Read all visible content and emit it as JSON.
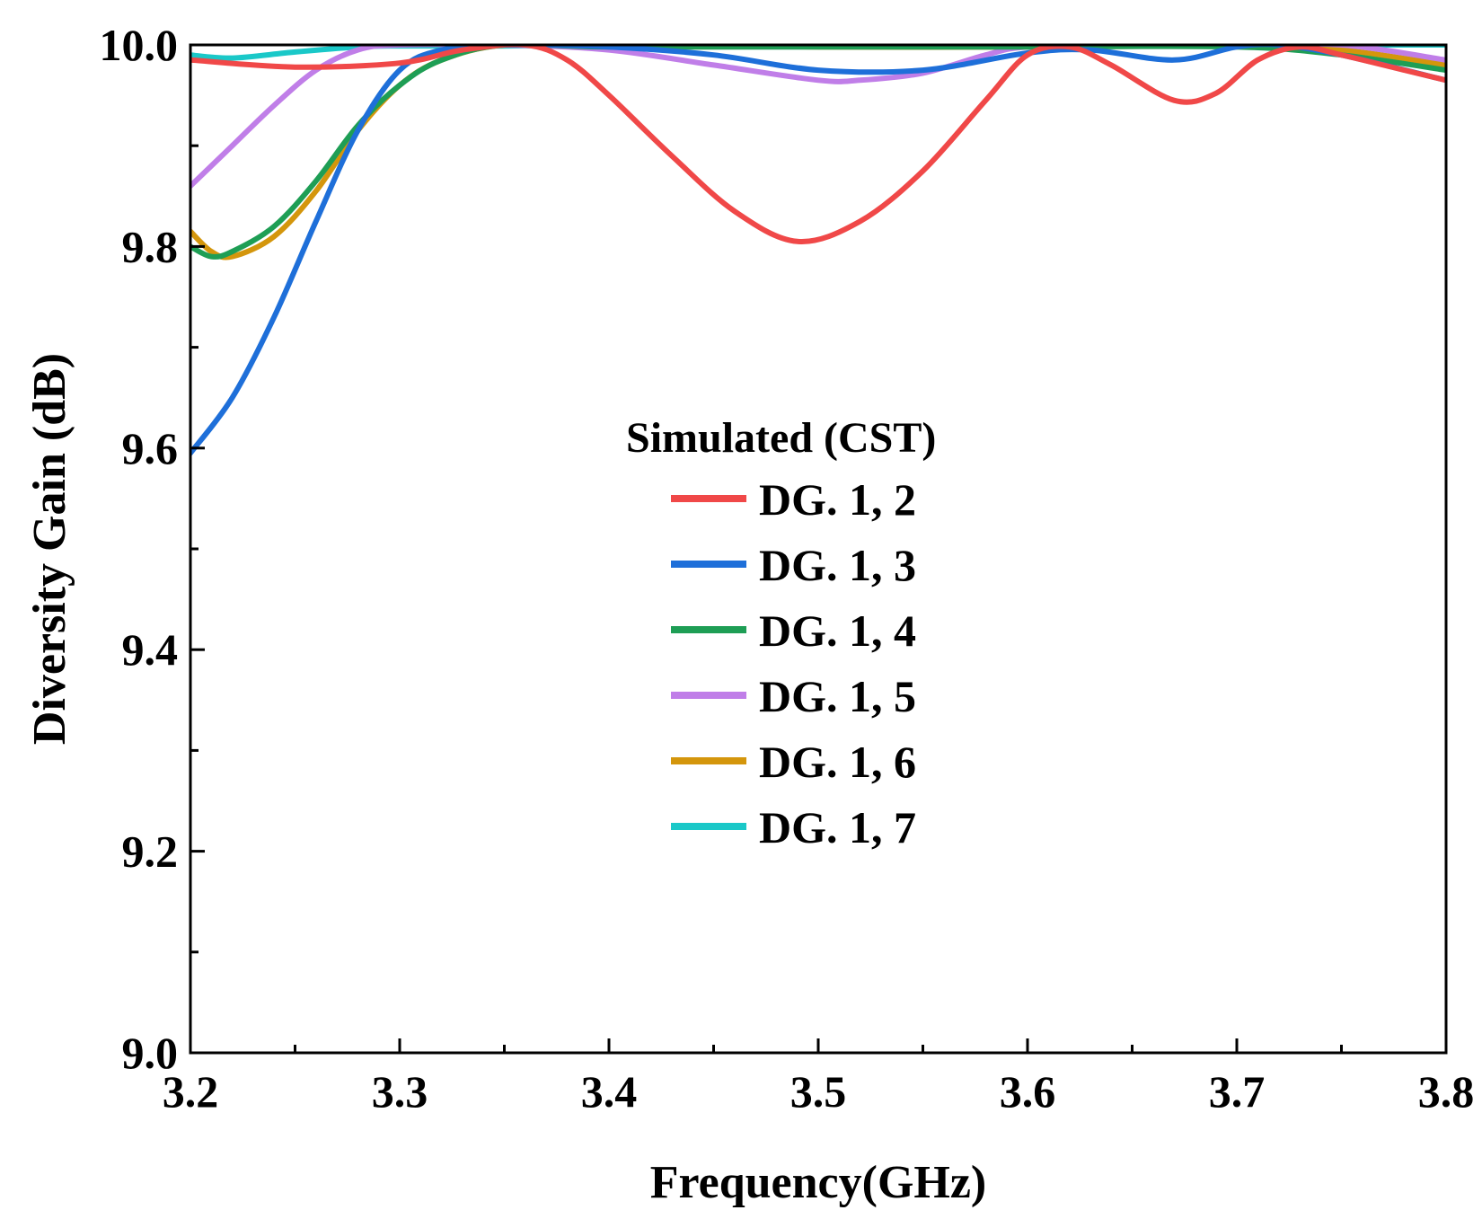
{
  "chart_data": {
    "type": "line",
    "title": "",
    "xlabel": "Frequency(GHz)",
    "ylabel": "Diversity Gain (dB)",
    "xlim": [
      3.2,
      3.8
    ],
    "ylim": [
      9.0,
      10.0
    ],
    "xticks": [
      3.2,
      3.3,
      3.4,
      3.5,
      3.6,
      3.7,
      3.8
    ],
    "xtick_labels": [
      "3.2",
      "3.3",
      "3.4",
      "3.5",
      "3.6",
      "3.7",
      "3.8"
    ],
    "xminor": [
      3.25,
      3.35,
      3.45,
      3.55,
      3.65,
      3.75
    ],
    "yticks": [
      9.0,
      9.2,
      9.4,
      9.6,
      9.8,
      10.0
    ],
    "ytick_labels": [
      "9.0",
      "9.2",
      "9.4",
      "9.6",
      "9.8",
      "10.0"
    ],
    "yminor": [
      9.1,
      9.3,
      9.5,
      9.7,
      9.9
    ],
    "grid": false,
    "legend": {
      "title": "Simulated (CST)",
      "position": "center"
    },
    "series": [
      {
        "name": "DG. 1, 2",
        "color": "#f04848",
        "x": [
          3.2,
          3.25,
          3.3,
          3.33,
          3.36,
          3.38,
          3.4,
          3.43,
          3.46,
          3.49,
          3.52,
          3.55,
          3.58,
          3.6,
          3.62,
          3.64,
          3.67,
          3.69,
          3.71,
          3.73,
          3.75,
          3.78,
          3.8
        ],
        "values": [
          9.985,
          9.978,
          9.982,
          9.995,
          10.0,
          9.985,
          9.95,
          9.89,
          9.835,
          9.805,
          9.825,
          9.875,
          9.945,
          9.99,
          9.998,
          9.98,
          9.945,
          9.952,
          9.985,
          9.998,
          9.99,
          9.975,
          9.965
        ]
      },
      {
        "name": "DG. 1, 3",
        "color": "#1e6fd9",
        "x": [
          3.2,
          3.22,
          3.24,
          3.26,
          3.28,
          3.3,
          3.32,
          3.35,
          3.4,
          3.45,
          3.5,
          3.55,
          3.6,
          3.63,
          3.67,
          3.7,
          3.72,
          3.75,
          3.8
        ],
        "values": [
          9.595,
          9.65,
          9.73,
          9.825,
          9.915,
          9.975,
          9.995,
          10.0,
          9.998,
          9.99,
          9.975,
          9.975,
          9.992,
          9.995,
          9.985,
          9.998,
          10.0,
          9.99,
          9.965
        ]
      },
      {
        "name": "DG. 1, 4",
        "color": "#1e9e55",
        "x": [
          3.2,
          3.21,
          3.22,
          3.24,
          3.26,
          3.28,
          3.3,
          3.32,
          3.35,
          3.4,
          3.5,
          3.6,
          3.7,
          3.75,
          3.8
        ],
        "values": [
          9.8,
          9.79,
          9.795,
          9.82,
          9.865,
          9.92,
          9.96,
          9.985,
          10.0,
          9.998,
          9.998,
          9.998,
          9.998,
          9.99,
          9.975
        ]
      },
      {
        "name": "DG. 1, 5",
        "color": "#c07ee8",
        "x": [
          3.2,
          3.22,
          3.24,
          3.26,
          3.28,
          3.3,
          3.35,
          3.4,
          3.45,
          3.5,
          3.52,
          3.55,
          3.58,
          3.6,
          3.65,
          3.7,
          3.75,
          3.8
        ],
        "values": [
          9.86,
          9.9,
          9.94,
          9.975,
          9.995,
          10.0,
          10.0,
          9.995,
          9.98,
          9.965,
          9.965,
          9.972,
          9.99,
          9.998,
          10.0,
          10.0,
          10.0,
          9.985
        ]
      },
      {
        "name": "DG. 1, 6",
        "color": "#d4960c",
        "x": [
          3.2,
          3.21,
          3.22,
          3.24,
          3.26,
          3.28,
          3.3,
          3.32,
          3.35,
          3.4,
          3.5,
          3.6,
          3.7,
          3.75,
          3.8
        ],
        "values": [
          9.815,
          9.795,
          9.79,
          9.81,
          9.855,
          9.915,
          9.96,
          9.985,
          10.0,
          10.0,
          9.998,
          9.998,
          10.0,
          9.995,
          9.98
        ]
      },
      {
        "name": "DG. 1, 7",
        "color": "#1ac8c8",
        "x": [
          3.2,
          3.22,
          3.25,
          3.28,
          3.3,
          3.35,
          3.4,
          3.5,
          3.6,
          3.7,
          3.8
        ],
        "values": [
          9.99,
          9.987,
          9.993,
          9.998,
          9.999,
          9.999,
          10.0,
          10.0,
          10.0,
          10.0,
          10.0
        ]
      }
    ]
  }
}
